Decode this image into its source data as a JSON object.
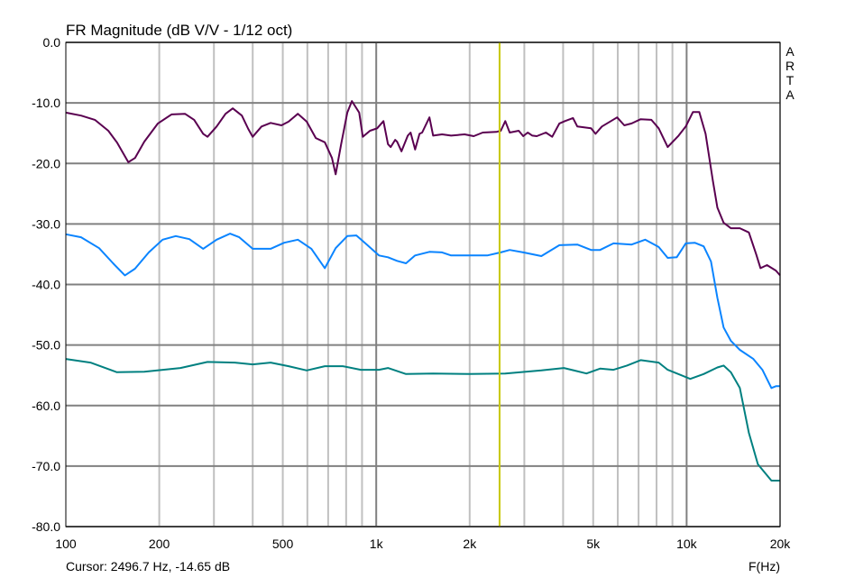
{
  "chart_data": {
    "type": "line",
    "title": "FR Magnitude (dB V/V - 1/12 oct)",
    "xlabel": "F(Hz)",
    "xscale": "log",
    "xlim": [
      100,
      20000
    ],
    "ylim": [
      -80,
      0
    ],
    "grid": true,
    "watermark": [
      "A",
      "R",
      "T",
      "A"
    ],
    "x_ticks": [
      {
        "v": 100,
        "label": "100"
      },
      {
        "v": 200,
        "label": "200"
      },
      {
        "v": 500,
        "label": "500"
      },
      {
        "v": 1000,
        "label": "1k"
      },
      {
        "v": 2000,
        "label": "2k"
      },
      {
        "v": 5000,
        "label": "5k"
      },
      {
        "v": 10000,
        "label": "10k"
      },
      {
        "v": 20000,
        "label": "20k"
      }
    ],
    "y_ticks": [
      {
        "v": 0,
        "label": "0.0"
      },
      {
        "v": -10,
        "label": "-10.0"
      },
      {
        "v": -20,
        "label": "-20.0"
      },
      {
        "v": -30,
        "label": "-30.0"
      },
      {
        "v": -40,
        "label": "-40.0"
      },
      {
        "v": -50,
        "label": "-50.0"
      },
      {
        "v": -60,
        "label": "-60.0"
      },
      {
        "v": -70,
        "label": "-70.0"
      },
      {
        "v": -80,
        "label": "-80.0"
      }
    ],
    "cursor": {
      "freq": 2496.7,
      "text": "Cursor: 2496.7 Hz, -14.65 dB",
      "color": "#c8c800"
    },
    "series": [
      {
        "color": "#5a0050",
        "points": [
          [
            100,
            -11.6
          ],
          [
            112,
            -12.1
          ],
          [
            124,
            -12.8
          ],
          [
            137,
            -14.6
          ],
          [
            146,
            -16.5
          ],
          [
            159,
            -19.8
          ],
          [
            167,
            -19.1
          ],
          [
            179,
            -16.4
          ],
          [
            198,
            -13.4
          ],
          [
            219,
            -11.9
          ],
          [
            242,
            -11.8
          ],
          [
            259,
            -12.8
          ],
          [
            277,
            -15.1
          ],
          [
            286,
            -15.6
          ],
          [
            306,
            -13.9
          ],
          [
            327,
            -11.8
          ],
          [
            345,
            -10.9
          ],
          [
            369,
            -12.1
          ],
          [
            387,
            -14.3
          ],
          [
            400,
            -15.6
          ],
          [
            427,
            -13.9
          ],
          [
            457,
            -13.3
          ],
          [
            495,
            -13.7
          ],
          [
            522,
            -13.1
          ],
          [
            559,
            -11.8
          ],
          [
            597,
            -13.1
          ],
          [
            639,
            -15.8
          ],
          [
            683,
            -16.5
          ],
          [
            720,
            -19.1
          ],
          [
            740,
            -21.8
          ],
          [
            771,
            -16.8
          ],
          [
            807,
            -11.6
          ],
          [
            835,
            -9.7
          ],
          [
            881,
            -11.6
          ],
          [
            905,
            -15.6
          ],
          [
            955,
            -14.6
          ],
          [
            1007,
            -14.2
          ],
          [
            1055,
            -13.0
          ],
          [
            1091,
            -16.8
          ],
          [
            1113,
            -17.3
          ],
          [
            1151,
            -16.1
          ],
          [
            1167,
            -16.4
          ],
          [
            1206,
            -18.0
          ],
          [
            1264,
            -15.4
          ],
          [
            1290,
            -14.9
          ],
          [
            1334,
            -17.7
          ],
          [
            1379,
            -15.1
          ],
          [
            1406,
            -14.9
          ],
          [
            1484,
            -12.4
          ],
          [
            1525,
            -15.4
          ],
          [
            1630,
            -15.2
          ],
          [
            1742,
            -15.4
          ],
          [
            1927,
            -15.2
          ],
          [
            2061,
            -15.5
          ],
          [
            2203,
            -14.9
          ],
          [
            2437,
            -14.8
          ],
          [
            2519,
            -14.6
          ],
          [
            2604,
            -13.0
          ],
          [
            2692,
            -14.9
          ],
          [
            2877,
            -14.6
          ],
          [
            2976,
            -15.5
          ],
          [
            3076,
            -14.9
          ],
          [
            3184,
            -15.4
          ],
          [
            3289,
            -15.5
          ],
          [
            3520,
            -14.9
          ],
          [
            3689,
            -15.6
          ],
          [
            3890,
            -13.4
          ],
          [
            4053,
            -13.0
          ],
          [
            4305,
            -12.5
          ],
          [
            4446,
            -13.9
          ],
          [
            4920,
            -14.2
          ],
          [
            5087,
            -15.1
          ],
          [
            5332,
            -13.9
          ],
          [
            5972,
            -12.4
          ],
          [
            6301,
            -13.7
          ],
          [
            6648,
            -13.4
          ],
          [
            7109,
            -12.7
          ],
          [
            7700,
            -12.8
          ],
          [
            8130,
            -14.2
          ],
          [
            8690,
            -17.3
          ],
          [
            9420,
            -15.4
          ],
          [
            9935,
            -13.9
          ],
          [
            10480,
            -11.5
          ],
          [
            10980,
            -11.5
          ],
          [
            11510,
            -15.1
          ],
          [
            12140,
            -22.8
          ],
          [
            12560,
            -27.3
          ],
          [
            13160,
            -29.8
          ],
          [
            13880,
            -30.7
          ],
          [
            14840,
            -30.7
          ],
          [
            15870,
            -31.4
          ],
          [
            16750,
            -35.0
          ],
          [
            17300,
            -37.3
          ],
          [
            18150,
            -36.8
          ],
          [
            19400,
            -37.7
          ],
          [
            20000,
            -38.5
          ]
        ]
      },
      {
        "color": "#0a84ff",
        "points": [
          [
            100,
            -31.7
          ],
          [
            112,
            -32.2
          ],
          [
            128,
            -34.0
          ],
          [
            142,
            -36.5
          ],
          [
            155,
            -38.5
          ],
          [
            167,
            -37.4
          ],
          [
            185,
            -34.7
          ],
          [
            205,
            -32.6
          ],
          [
            226,
            -32.0
          ],
          [
            250,
            -32.5
          ],
          [
            277,
            -34.1
          ],
          [
            306,
            -32.6
          ],
          [
            338,
            -31.6
          ],
          [
            362,
            -32.2
          ],
          [
            400,
            -34.1
          ],
          [
            457,
            -34.1
          ],
          [
            505,
            -33.1
          ],
          [
            559,
            -32.6
          ],
          [
            618,
            -34.1
          ],
          [
            683,
            -37.3
          ],
          [
            740,
            -34.0
          ],
          [
            807,
            -32.0
          ],
          [
            863,
            -31.9
          ],
          [
            923,
            -33.2
          ],
          [
            1020,
            -35.2
          ],
          [
            1091,
            -35.5
          ],
          [
            1167,
            -36.1
          ],
          [
            1247,
            -36.5
          ],
          [
            1334,
            -35.2
          ],
          [
            1484,
            -34.6
          ],
          [
            1630,
            -34.7
          ],
          [
            1742,
            -35.2
          ],
          [
            1992,
            -35.2
          ],
          [
            2279,
            -35.2
          ],
          [
            2519,
            -34.7
          ],
          [
            2692,
            -34.3
          ],
          [
            2976,
            -34.7
          ],
          [
            3404,
            -35.3
          ],
          [
            3890,
            -33.5
          ],
          [
            4446,
            -33.4
          ],
          [
            4920,
            -34.3
          ],
          [
            5260,
            -34.3
          ],
          [
            5815,
            -33.2
          ],
          [
            6648,
            -33.4
          ],
          [
            7350,
            -32.6
          ],
          [
            8130,
            -33.8
          ],
          [
            8690,
            -35.6
          ],
          [
            9290,
            -35.5
          ],
          [
            9935,
            -33.2
          ],
          [
            10620,
            -33.1
          ],
          [
            11350,
            -33.7
          ],
          [
            11980,
            -36.2
          ],
          [
            12560,
            -42.2
          ],
          [
            13160,
            -47.1
          ],
          [
            13880,
            -49.3
          ],
          [
            14840,
            -50.8
          ],
          [
            16410,
            -52.3
          ],
          [
            17540,
            -54.1
          ],
          [
            18760,
            -57.1
          ],
          [
            19400,
            -56.8
          ],
          [
            20000,
            -56.8
          ]
        ]
      },
      {
        "color": "#008080",
        "points": [
          [
            100,
            -52.3
          ],
          [
            120,
            -52.9
          ],
          [
            146,
            -54.5
          ],
          [
            179,
            -54.4
          ],
          [
            234,
            -53.8
          ],
          [
            286,
            -52.8
          ],
          [
            350,
            -52.9
          ],
          [
            400,
            -53.2
          ],
          [
            457,
            -52.9
          ],
          [
            522,
            -53.5
          ],
          [
            597,
            -54.2
          ],
          [
            683,
            -53.5
          ],
          [
            780,
            -53.5
          ],
          [
            892,
            -54.1
          ],
          [
            1020,
            -54.1
          ],
          [
            1091,
            -53.8
          ],
          [
            1247,
            -54.8
          ],
          [
            1525,
            -54.7
          ],
          [
            1992,
            -54.8
          ],
          [
            2604,
            -54.7
          ],
          [
            3404,
            -54.2
          ],
          [
            4024,
            -53.8
          ],
          [
            4756,
            -54.7
          ],
          [
            5260,
            -53.9
          ],
          [
            5815,
            -54.1
          ],
          [
            6424,
            -53.4
          ],
          [
            7109,
            -52.5
          ],
          [
            8130,
            -52.9
          ],
          [
            8690,
            -54.1
          ],
          [
            10270,
            -55.6
          ],
          [
            11350,
            -54.8
          ],
          [
            12560,
            -53.7
          ],
          [
            13160,
            -53.4
          ],
          [
            13880,
            -54.5
          ],
          [
            14840,
            -57.1
          ],
          [
            15870,
            -64.5
          ],
          [
            16970,
            -69.7
          ],
          [
            18760,
            -72.4
          ],
          [
            20000,
            -72.4
          ]
        ]
      }
    ]
  }
}
